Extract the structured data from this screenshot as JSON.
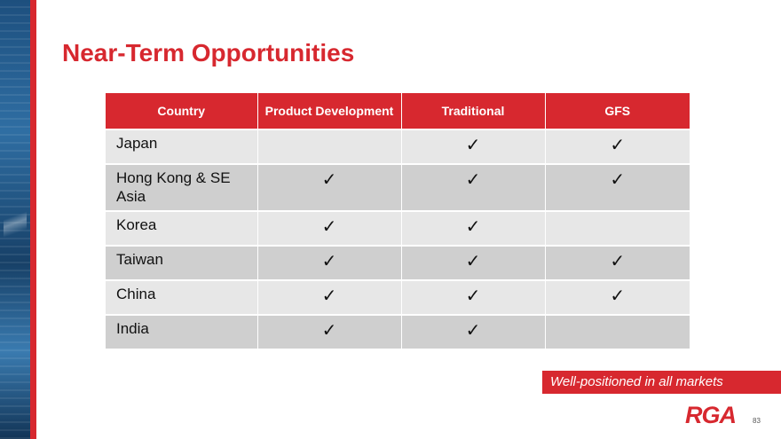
{
  "slide": {
    "title": "Near-Term Opportunities",
    "callout": "Well-positioned in all markets",
    "logo_text": "RGA",
    "page_number": "83",
    "accent_color": "#d7282f"
  },
  "table": {
    "headers": [
      "Country",
      "Product Development",
      "Traditional",
      "GFS"
    ],
    "check_glyph": "✓",
    "rows": [
      {
        "country": "Japan",
        "marks": [
          "",
          "✓",
          "✓"
        ]
      },
      {
        "country": "Hong Kong & SE Asia",
        "marks": [
          "✓",
          "✓",
          "✓"
        ]
      },
      {
        "country": "Korea",
        "marks": [
          "✓",
          "✓",
          ""
        ]
      },
      {
        "country": "Taiwan",
        "marks": [
          "✓",
          "✓",
          "✓"
        ]
      },
      {
        "country": "China",
        "marks": [
          "✓",
          "✓",
          "✓"
        ]
      },
      {
        "country": "India",
        "marks": [
          "✓",
          "✓",
          ""
        ]
      }
    ]
  }
}
